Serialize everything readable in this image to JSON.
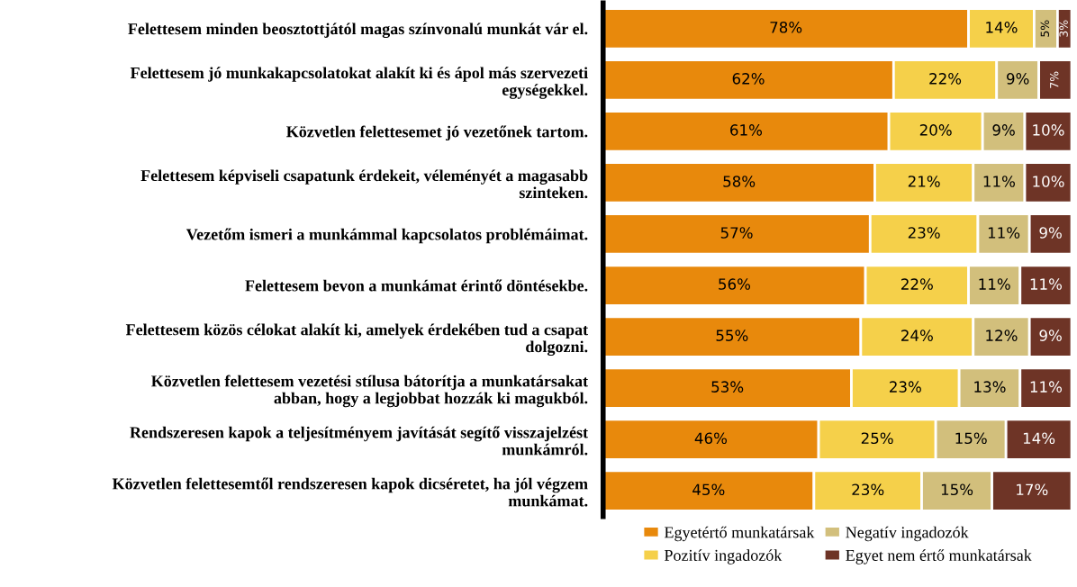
{
  "chart_data": {
    "type": "bar",
    "orientation": "horizontal",
    "stacked": true,
    "legend": "bottom",
    "grid": false,
    "categories": [
      "Felettesem minden beosztottjától magas színvonalú munkát vár el.",
      "Felettesem jó munkakapcsolatokat alakít ki és ápol más szervezeti\negységekkel.",
      "Közvetlen felettesemet jó vezetőnek tartom.",
      "Felettesem képviseli csapatunk érdekeit, véleményét a magasabb\nszinteken.",
      "Vezetőm ismeri a munkámmal kapcsolatos problémáimat.",
      "Felettesem bevon a munkámat érintő döntésekbe.",
      "Felettesem közös célokat alakít ki, amelyek érdekében tud a csapat\ndolgozni.",
      "Közvetlen felettesem vezetési stílusa bátorítja a munkatársakat\nabban, hogy a legjobbat hozzák ki magukból.",
      "Rendszeresen kapok a teljesítményem javítását segítő visszajelzést\nmunkámról.",
      "Közvetlen felettesemtől rendszeresen kapok dicséretet, ha jól végzem\nmunkámat."
    ],
    "series": [
      {
        "name": "Egyetértő munkatársak",
        "color": "#e8890c",
        "values": [
          78,
          62,
          61,
          58,
          57,
          56,
          55,
          53,
          46,
          45
        ],
        "value_labels": [
          "78%",
          "62%",
          "61%",
          "58%",
          "57%",
          "56%",
          "55%",
          "53%",
          "46%",
          "45%"
        ]
      },
      {
        "name": "Pozitív ingadozók",
        "color": "#f5d04a",
        "values": [
          14,
          22,
          20,
          21,
          23,
          22,
          24,
          23,
          25,
          23
        ],
        "value_labels": [
          "14%",
          "22%",
          "20%",
          "21%",
          "23%",
          "22%",
          "24%",
          "23%",
          "25%",
          "23%"
        ]
      },
      {
        "name": "Negatív ingadozók",
        "color": "#d2bf7c",
        "values": [
          5,
          9,
          9,
          11,
          11,
          11,
          12,
          13,
          15,
          15
        ],
        "value_labels": [
          "5%",
          "9%",
          "9%",
          "11%",
          "11%",
          "11%",
          "12%",
          "13%",
          "15%",
          "15%"
        ]
      },
      {
        "name": "Egyet nem értő munkatársak",
        "color": "#6e3426",
        "values": [
          3,
          7,
          10,
          10,
          9,
          11,
          9,
          11,
          14,
          17
        ],
        "value_labels": [
          "3%",
          "7%",
          "10%",
          "10%",
          "9%",
          "11%",
          "9%",
          "11%",
          "14%",
          "17%"
        ]
      }
    ]
  }
}
